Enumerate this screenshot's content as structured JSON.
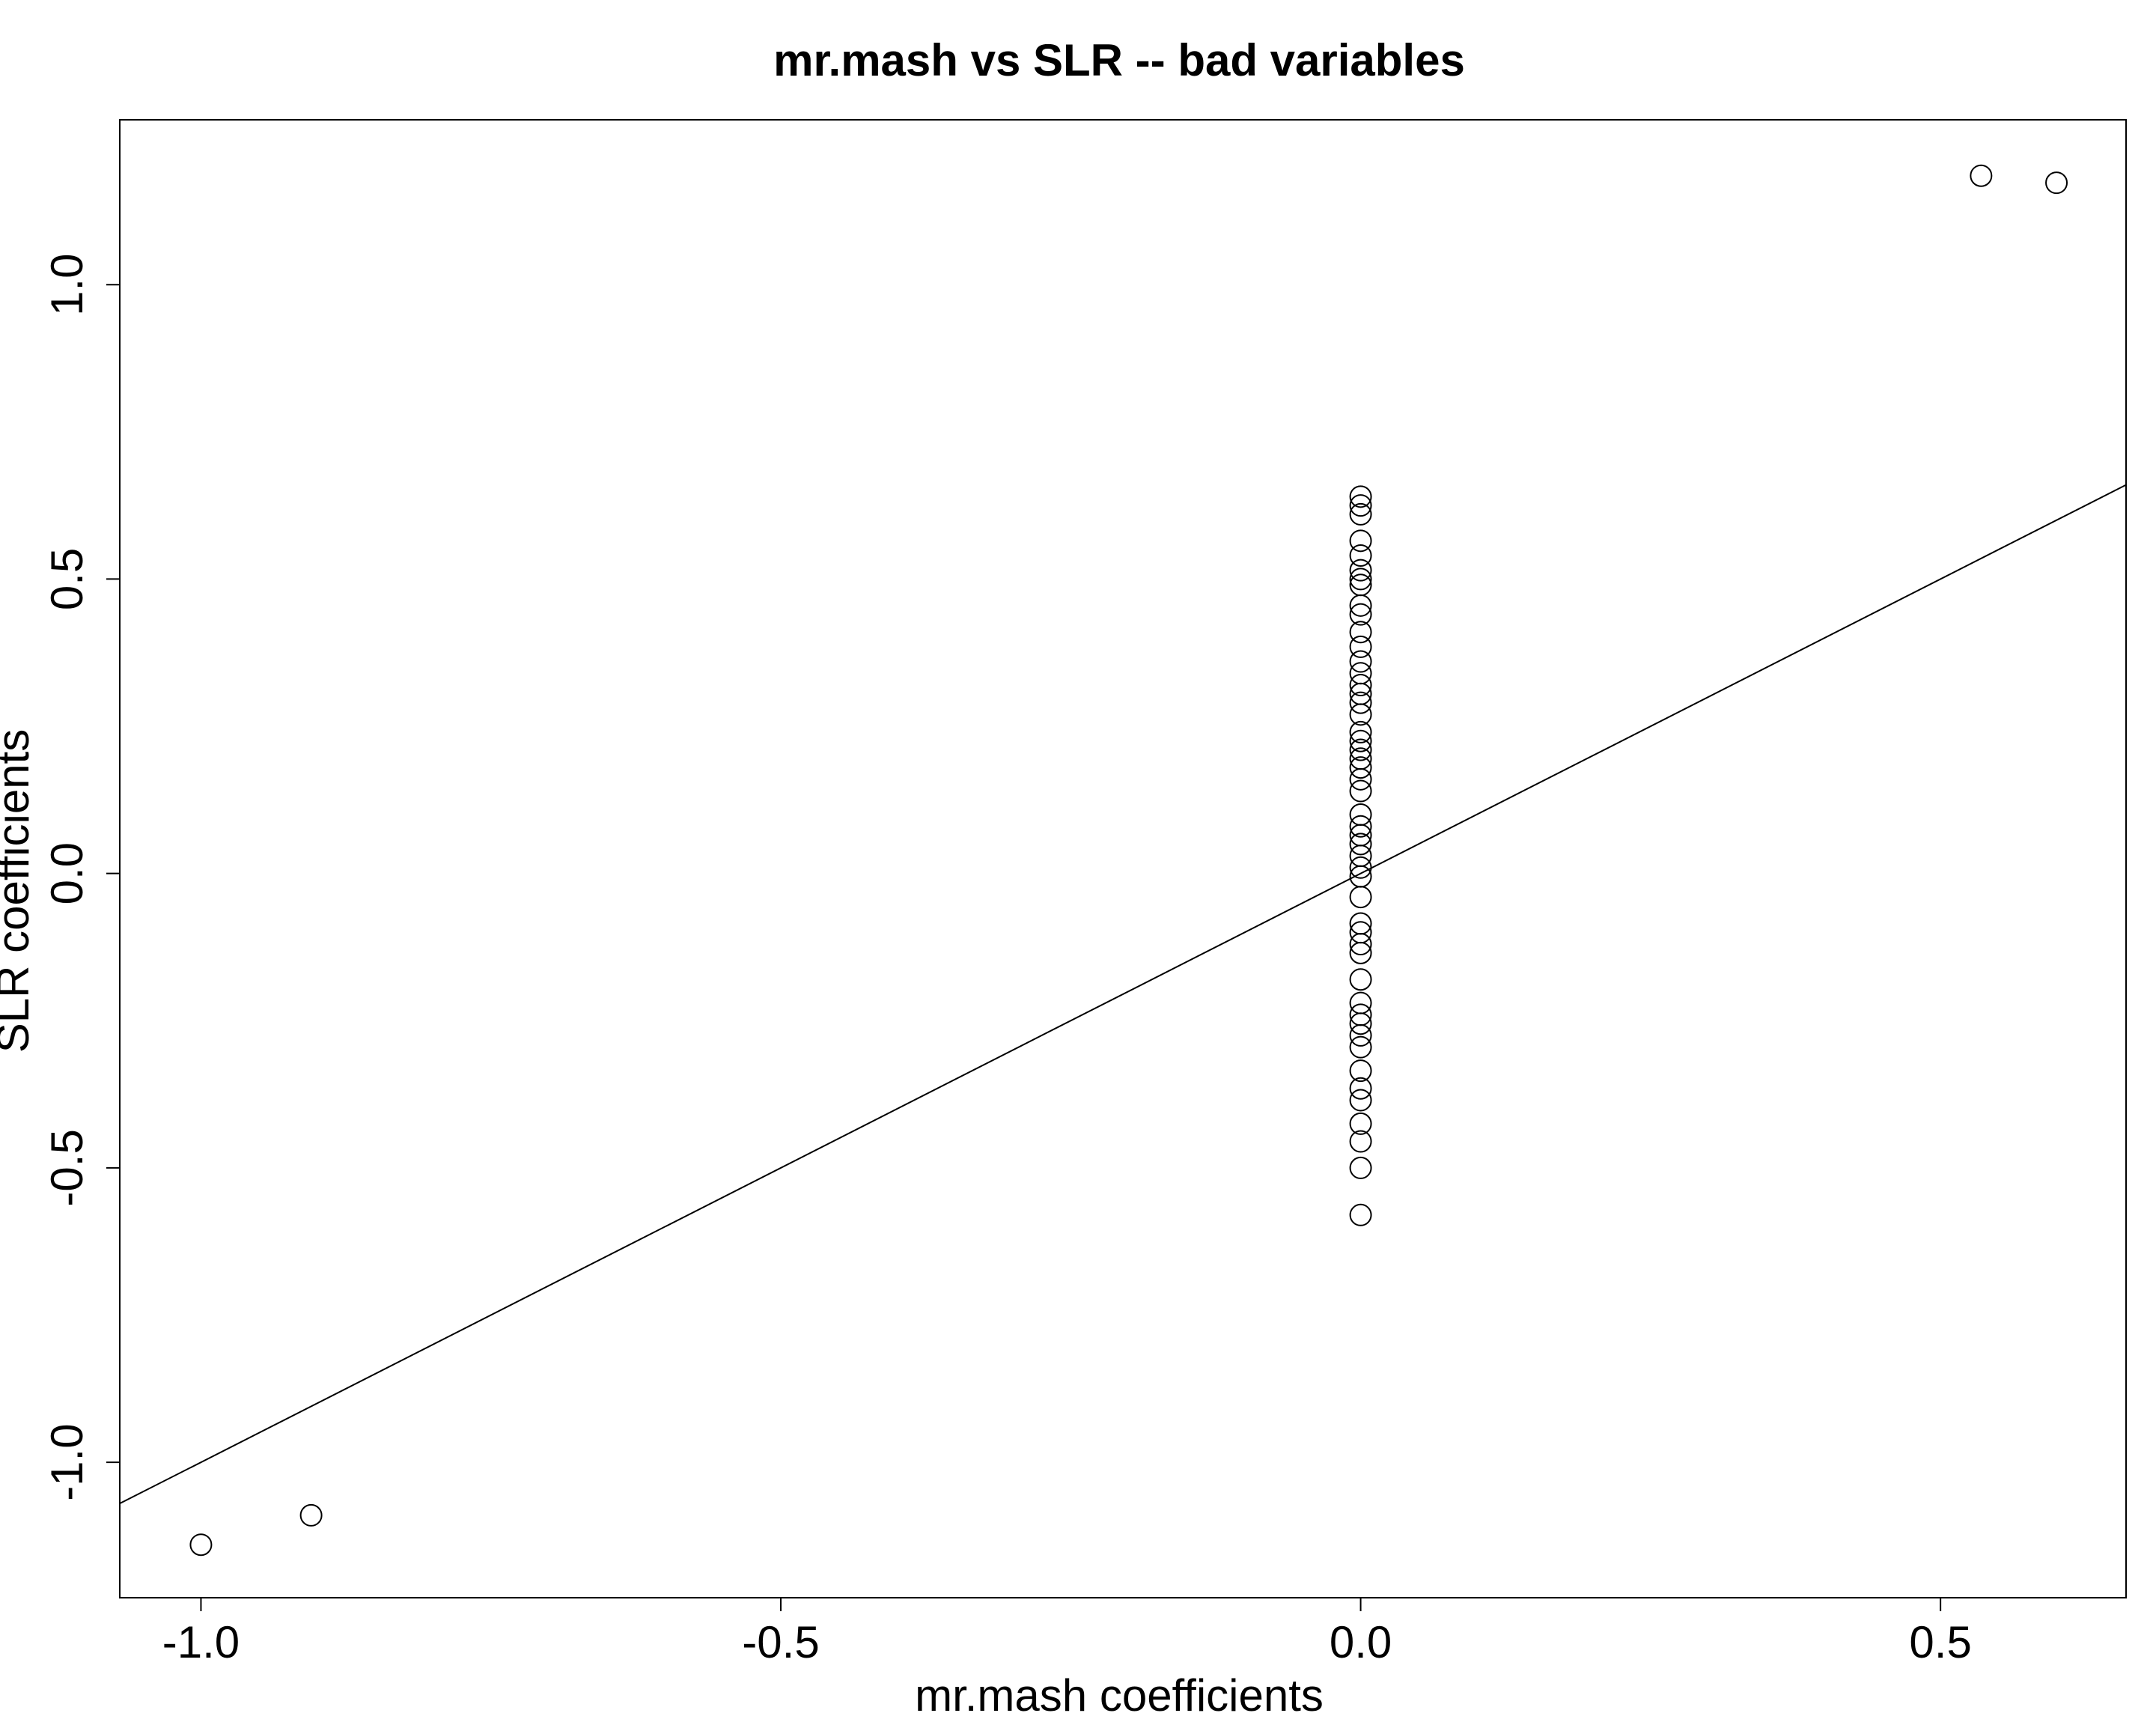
{
  "chart_data": {
    "type": "scatter",
    "title": "mr.mash vs SLR -- bad variables",
    "xlabel": "mr.mash coefficients",
    "ylabel": "SLR coefficients",
    "xlim": [
      -1.07,
      0.66
    ],
    "ylim": [
      -1.23,
      1.28
    ],
    "x_ticks": [
      -1.0,
      -0.5,
      0.0,
      0.5
    ],
    "x_tick_labels": [
      "-1.0",
      "-0.5",
      "0.0",
      "0.5"
    ],
    "y_ticks": [
      -1.0,
      -0.5,
      0.0,
      0.5,
      1.0
    ],
    "y_tick_labels": [
      "-1.0",
      "-0.5",
      "0.0",
      "0.5",
      "1.0"
    ],
    "grid": false,
    "marker": "open-circle",
    "reference_line": {
      "intercept": 0,
      "slope": 1
    },
    "colors": {
      "points": "#000000",
      "line": "#000000",
      "background": "#ffffff"
    },
    "points": [
      {
        "x": -1.0,
        "y": -1.14
      },
      {
        "x": -0.905,
        "y": -1.09
      },
      {
        "x": 0.535,
        "y": 1.185
      },
      {
        "x": 0.6,
        "y": 1.173
      },
      {
        "x": 0.0,
        "y": 0.64
      },
      {
        "x": 0.0,
        "y": 0.625
      },
      {
        "x": 0.0,
        "y": 0.61
      },
      {
        "x": 0.0,
        "y": 0.565
      },
      {
        "x": 0.0,
        "y": 0.54
      },
      {
        "x": 0.0,
        "y": 0.515
      },
      {
        "x": 0.0,
        "y": 0.5
      },
      {
        "x": 0.0,
        "y": 0.49
      },
      {
        "x": 0.0,
        "y": 0.455
      },
      {
        "x": 0.0,
        "y": 0.44
      },
      {
        "x": 0.0,
        "y": 0.41
      },
      {
        "x": 0.0,
        "y": 0.385
      },
      {
        "x": 0.0,
        "y": 0.36
      },
      {
        "x": 0.0,
        "y": 0.34
      },
      {
        "x": 0.0,
        "y": 0.32
      },
      {
        "x": 0.0,
        "y": 0.305
      },
      {
        "x": 0.0,
        "y": 0.29
      },
      {
        "x": 0.0,
        "y": 0.27
      },
      {
        "x": 0.0,
        "y": 0.24
      },
      {
        "x": 0.0,
        "y": 0.225
      },
      {
        "x": 0.0,
        "y": 0.21
      },
      {
        "x": 0.0,
        "y": 0.195
      },
      {
        "x": 0.0,
        "y": 0.18
      },
      {
        "x": 0.0,
        "y": 0.16
      },
      {
        "x": 0.0,
        "y": 0.14
      },
      {
        "x": 0.0,
        "y": 0.1
      },
      {
        "x": 0.0,
        "y": 0.08
      },
      {
        "x": 0.0,
        "y": 0.065
      },
      {
        "x": 0.0,
        "y": 0.05
      },
      {
        "x": 0.0,
        "y": 0.03
      },
      {
        "x": 0.0,
        "y": 0.01
      },
      {
        "x": 0.0,
        "y": -0.005
      },
      {
        "x": 0.0,
        "y": -0.04
      },
      {
        "x": 0.0,
        "y": -0.085
      },
      {
        "x": 0.0,
        "y": -0.1
      },
      {
        "x": 0.0,
        "y": -0.12
      },
      {
        "x": 0.0,
        "y": -0.135
      },
      {
        "x": 0.0,
        "y": -0.18
      },
      {
        "x": 0.0,
        "y": -0.22
      },
      {
        "x": 0.0,
        "y": -0.24
      },
      {
        "x": 0.0,
        "y": -0.255
      },
      {
        "x": 0.0,
        "y": -0.275
      },
      {
        "x": 0.0,
        "y": -0.295
      },
      {
        "x": 0.0,
        "y": -0.335
      },
      {
        "x": 0.0,
        "y": -0.365
      },
      {
        "x": 0.0,
        "y": -0.385
      },
      {
        "x": 0.0,
        "y": -0.425
      },
      {
        "x": 0.0,
        "y": -0.455
      },
      {
        "x": 0.0,
        "y": -0.5
      },
      {
        "x": 0.0,
        "y": -0.58
      }
    ]
  }
}
